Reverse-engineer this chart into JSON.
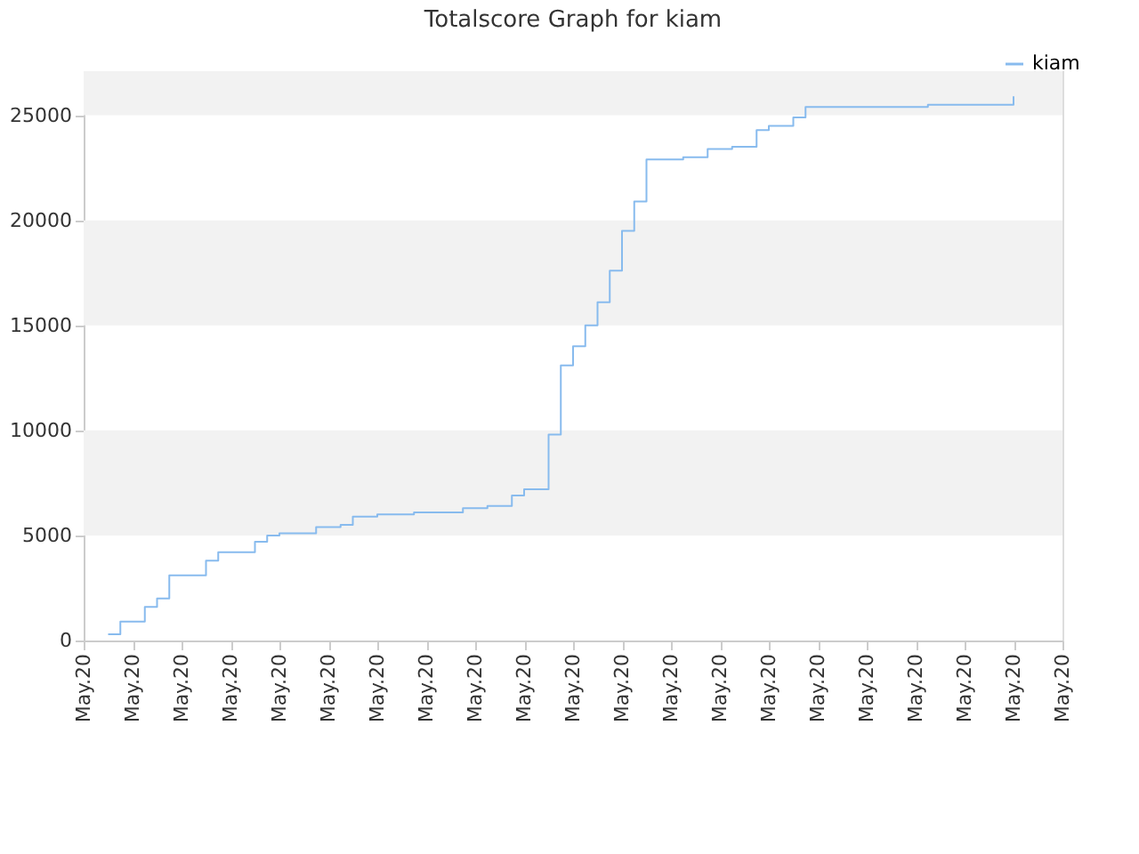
{
  "chart_data": {
    "type": "step",
    "title": "Totalscore Graph for kiam",
    "categories": [
      "May.20",
      null,
      null,
      null,
      "May.20",
      null,
      null,
      null,
      "May.20",
      null,
      null,
      null,
      "May.20",
      null,
      null,
      null,
      "May.20",
      null,
      null,
      null,
      "May.20",
      null,
      null,
      null,
      "May.20",
      null,
      null,
      null,
      "May.20",
      null,
      null,
      null,
      "May.20",
      null,
      null,
      null,
      "May.20",
      null,
      null,
      null,
      "May.20",
      null,
      null,
      null,
      "May.20",
      null,
      null,
      null,
      "May.20",
      null,
      null,
      null,
      "May.20",
      null,
      null,
      null,
      "May.20",
      null,
      null,
      null,
      "May.20",
      null,
      null,
      null,
      "May.20",
      null,
      null,
      null,
      "May.20",
      null,
      null,
      null,
      "May.20",
      null,
      null,
      null,
      "May.20",
      null,
      null,
      null,
      "May.20"
    ],
    "series": [
      {
        "name": "kiam",
        "color": "#88bbee",
        "values": [
          null,
          null,
          300,
          900,
          900,
          1600,
          2000,
          3100,
          3100,
          3100,
          3800,
          4200,
          4200,
          4200,
          4700,
          5000,
          5100,
          5100,
          5100,
          5400,
          5400,
          5500,
          5900,
          5900,
          6000,
          6000,
          6000,
          6100,
          6100,
          6100,
          6100,
          6300,
          6300,
          6400,
          6400,
          6900,
          7200,
          7200,
          9800,
          13100,
          14000,
          15000,
          16100,
          17600,
          19500,
          20900,
          22900,
          22900,
          22900,
          23000,
          23000,
          23400,
          23400,
          23500,
          23500,
          24300,
          24500,
          24500,
          24900,
          25400,
          25400,
          25400,
          25400,
          25400,
          25400,
          25400,
          25400,
          25400,
          25400,
          25500,
          25500,
          25500,
          25500,
          25500,
          25500,
          25500,
          25900,
          null,
          null,
          null,
          null
        ]
      }
    ],
    "ylim": [
      0,
      27100
    ],
    "yticks": [
      0,
      5000,
      10000,
      15000,
      20000,
      25000
    ],
    "bands": [
      {
        "axis": "y",
        "from": 5000,
        "to": 10000,
        "color": "#f2f2f2"
      },
      {
        "axis": "y",
        "from": 15000,
        "to": 20000,
        "color": "#f2f2f2"
      },
      {
        "axis": "y",
        "from": 25000,
        "to": 27100,
        "color": "#f2f2f2"
      }
    ],
    "legend": "top right"
  }
}
